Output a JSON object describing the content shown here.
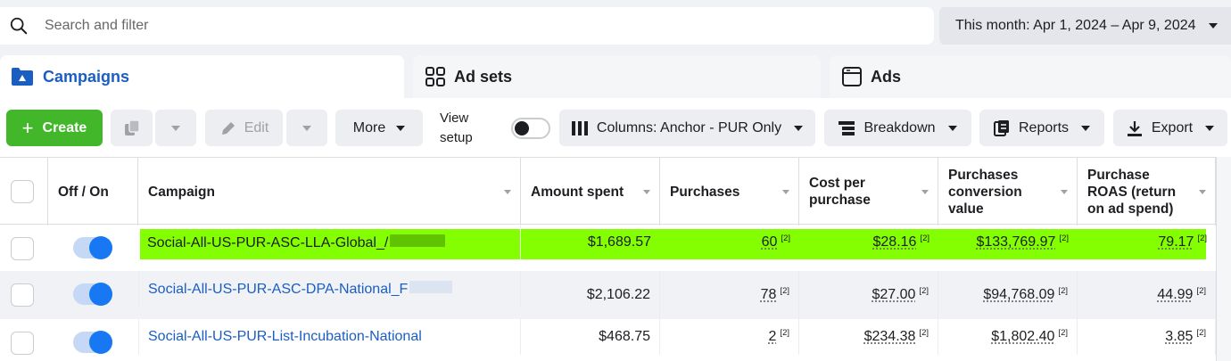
{
  "search": {
    "placeholder": "Search and filter"
  },
  "date_range": {
    "label": "This month: Apr 1, 2024 – Apr 9, 2024"
  },
  "tabs": [
    {
      "label": "Campaigns",
      "active": true
    },
    {
      "label": "Ad sets",
      "active": false
    },
    {
      "label": "Ads",
      "active": false
    }
  ],
  "toolbar": {
    "create": "Create",
    "edit": "Edit",
    "more": "More",
    "view_setup_line1": "View",
    "view_setup_line2": "setup",
    "columns": "Columns: Anchor - PUR Only",
    "breakdown": "Breakdown",
    "reports": "Reports",
    "export": "Export"
  },
  "table": {
    "headers": {
      "off_on": "Off / On",
      "campaign": "Campaign",
      "amount_spent": "Amount spent",
      "purchases": "Purchases",
      "cost_per_purchase_1": "Cost per",
      "cost_per_purchase_2": "purchase",
      "pcv_1": "Purchases",
      "pcv_2": "conversion",
      "pcv_3": "value",
      "roas_1": "Purchase",
      "roas_2": "ROAS (return",
      "roas_3": "on ad spend)"
    },
    "rows": [
      {
        "campaign": "Social-All-US-PUR-ASC-LLA-Global_/",
        "amount_spent": "$1,689.57",
        "purchases": "60",
        "cost_per_purchase": "$28.16",
        "conversion_value": "$133,769.97",
        "roas": "79.17",
        "footnote": "[2]",
        "highlighted": true
      },
      {
        "campaign": "Social-All-US-PUR-ASC-DPA-National_F",
        "amount_spent": "$2,106.22",
        "purchases": "78",
        "cost_per_purchase": "$27.00",
        "conversion_value": "$94,768.09",
        "roas": "44.99",
        "footnote": "[2]",
        "highlighted": false
      },
      {
        "campaign": "Social-All-US-PUR-List-Incubation-National",
        "amount_spent": "$468.75",
        "purchases": "2",
        "cost_per_purchase": "$234.38",
        "conversion_value": "$1,802.40",
        "roas": "3.85",
        "footnote": "[2]",
        "highlighted": false
      }
    ]
  },
  "colors": {
    "accent": "#1877f2",
    "link": "#1b5ec2",
    "create": "#42b72a",
    "highlight": "#84ff01"
  }
}
